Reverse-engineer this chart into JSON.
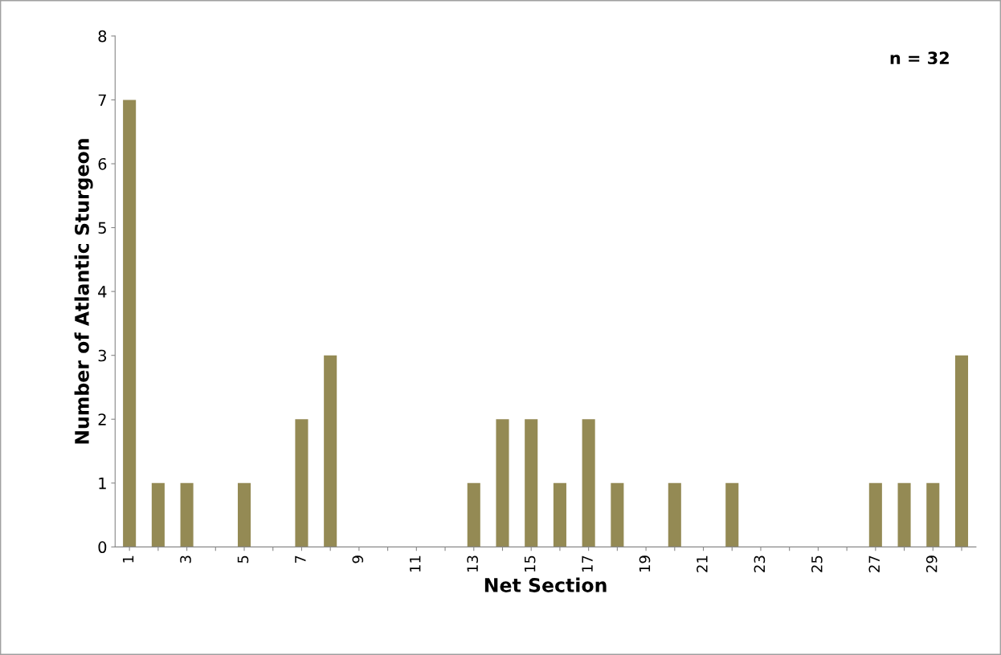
{
  "chart_data": {
    "type": "bar",
    "xlabel": "Net Section",
    "ylabel": "Number of Atlantic Sturgeon",
    "categories": [
      "1",
      null,
      "3",
      null,
      "5",
      null,
      "7",
      null,
      "9",
      null,
      "11",
      null,
      "13",
      null,
      "15",
      null,
      "17",
      null,
      "19",
      null,
      "21",
      null,
      "23",
      null,
      "25",
      null,
      "27",
      null,
      "29",
      null
    ],
    "values": [
      7,
      1,
      1,
      0,
      1,
      0,
      2,
      3,
      0,
      0,
      0,
      0,
      1,
      2,
      2,
      1,
      2,
      1,
      0,
      1,
      0,
      1,
      0,
      0,
      0,
      0,
      1,
      1,
      1,
      3
    ],
    "color": "#948a54",
    "ylim": [
      0,
      8
    ],
    "yticks": [
      0,
      1,
      2,
      3,
      4,
      5,
      6,
      7,
      8
    ],
    "grid": false,
    "annotations": [
      "n = 32"
    ]
  }
}
